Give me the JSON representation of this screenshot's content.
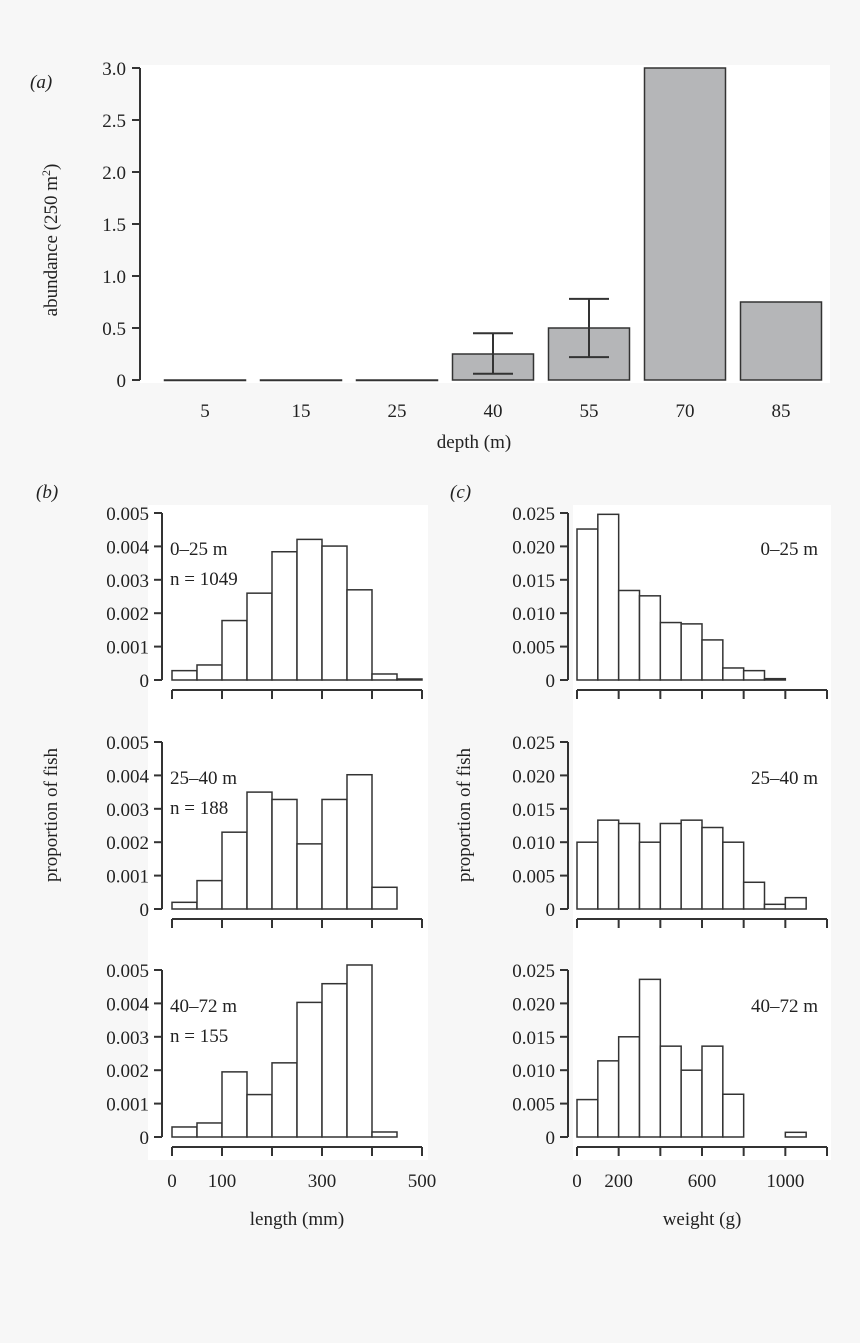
{
  "colors": {
    "bar_fill_a": "#b5b6b8",
    "hist_fill": "#ffffff",
    "stroke": "#333333",
    "background": "#f7f7f7"
  },
  "chart_data": [
    {
      "panel": "(a)",
      "type": "bar",
      "xlabel": "depth (m)",
      "ylabel": "abundance (250 m",
      "ylabel_sup": "2",
      "ylabel_close": ")",
      "categories": [
        "5",
        "15",
        "25",
        "40",
        "55",
        "70",
        "85"
      ],
      "values": [
        0,
        0,
        0,
        0.25,
        0.5,
        3.0,
        0.75
      ],
      "error_bars": [
        null,
        null,
        null,
        [
          0.06,
          0.45
        ],
        [
          0.22,
          0.78
        ],
        null,
        null
      ],
      "ylim": [
        0,
        3.0
      ],
      "yticks": [
        "0",
        "0.5",
        "1.0",
        "1.5",
        "2.0",
        "2.5",
        "3.0"
      ]
    },
    {
      "panel": "(b)",
      "type": "bar",
      "xlabel": "length (mm)",
      "ylabel": "proportion of fish",
      "xlim": [
        0,
        500
      ],
      "bin_width": 50,
      "xticks": [
        0,
        100,
        200,
        300,
        400,
        500
      ],
      "xtick_labels": [
        "0",
        "100",
        "",
        "300",
        "",
        "500"
      ],
      "ylim": [
        0,
        0.005
      ],
      "yticks": [
        "0",
        "0.001",
        "0.002",
        "0.003",
        "0.004",
        "0.005"
      ],
      "series": [
        {
          "name": "0–25 m",
          "n_label": "n = 1049",
          "values": [
            0.00028,
            0.00045,
            0.00178,
            0.0026,
            0.00384,
            0.00421,
            0.00401,
            0.0027,
            0.00018,
            3e-05
          ]
        },
        {
          "name": "25–40 m",
          "n_label": "n = 188",
          "values": [
            0.0002,
            0.00085,
            0.0023,
            0.0035,
            0.00328,
            0.00195,
            0.00328,
            0.00402,
            0.00065
          ]
        },
        {
          "name": "40–72 m",
          "n_label": "n = 155",
          "values": [
            0.0003,
            0.00042,
            0.00195,
            0.00127,
            0.00222,
            0.00403,
            0.00459,
            0.00515,
            0.00015
          ]
        }
      ]
    },
    {
      "panel": "(c)",
      "type": "bar",
      "xlabel": "weight (g)",
      "ylabel": "proportion of fish",
      "xlim": [
        0,
        1200
      ],
      "bin_width": 100,
      "xticks": [
        0,
        200,
        400,
        600,
        800,
        1000,
        1200
      ],
      "xtick_labels": [
        "0",
        "200",
        "",
        "600",
        "",
        "1000",
        ""
      ],
      "ylim": [
        0,
        0.025
      ],
      "yticks": [
        "0",
        "0.005",
        "0.010",
        "0.015",
        "0.020",
        "0.025"
      ],
      "series": [
        {
          "name": "0–25 m",
          "values": [
            0.0226,
            0.0248,
            0.0134,
            0.0126,
            0.0086,
            0.0084,
            0.006,
            0.0018,
            0.0014,
            0.0002
          ]
        },
        {
          "name": "25–40 m",
          "values": [
            0.01,
            0.0133,
            0.0128,
            0.01,
            0.0128,
            0.0133,
            0.0122,
            0.01,
            0.004,
            0.0007,
            0.0017
          ]
        },
        {
          "name": "40–72 m",
          "values": [
            0.0056,
            0.0114,
            0.015,
            0.0236,
            0.0136,
            0.01,
            0.0136,
            0.0064,
            0,
            0,
            0.0007
          ]
        }
      ]
    }
  ]
}
